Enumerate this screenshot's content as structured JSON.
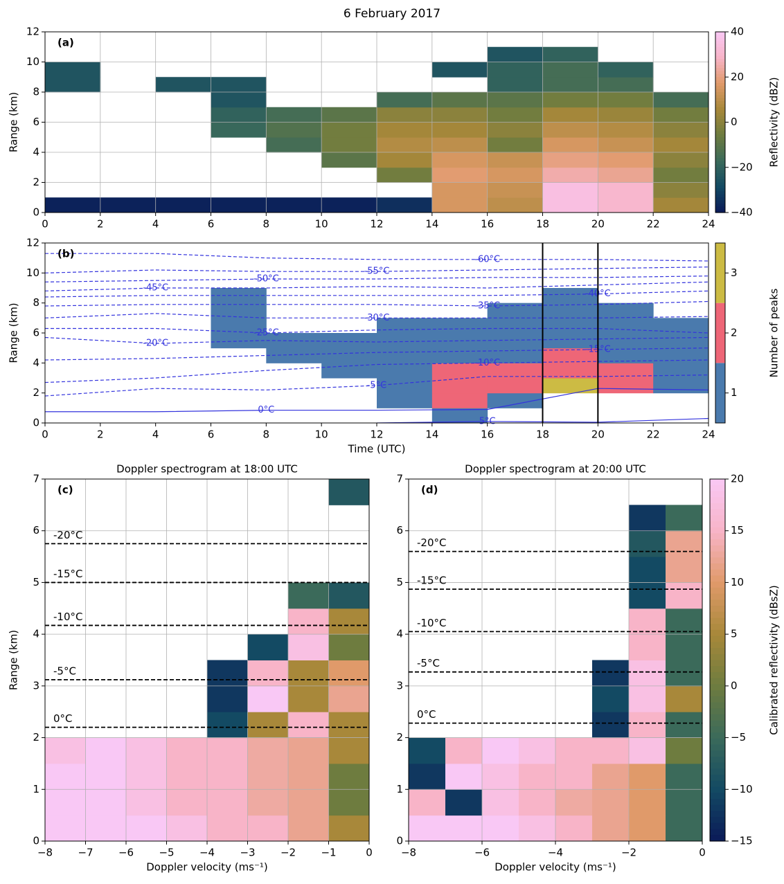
{
  "title": "6 February 2017",
  "chart_data": [
    {
      "type": "heatmap",
      "panel_label": "(a)",
      "ylabel": "Range (km)",
      "grid": true,
      "xlim": [
        0,
        24
      ],
      "xticks": [
        0,
        2,
        4,
        6,
        8,
        10,
        12,
        14,
        16,
        18,
        20,
        22,
        24
      ],
      "ylim": [
        0,
        12
      ],
      "yticks": [
        0,
        2,
        4,
        6,
        8,
        10,
        12
      ],
      "x_edges": [
        0,
        2,
        4,
        6,
        8,
        10,
        12,
        14,
        16,
        18,
        20,
        22,
        24
      ],
      "y_edges": [
        0,
        1,
        2,
        3,
        4,
        5,
        6,
        7,
        8,
        9,
        10,
        11,
        12
      ],
      "z": [
        [
          -38,
          -38,
          -38,
          -38,
          -38,
          -38,
          -35,
          15,
          10,
          35,
          30,
          5
        ],
        [
          null,
          null,
          null,
          null,
          null,
          null,
          null,
          15,
          12,
          35,
          30,
          0
        ],
        [
          null,
          null,
          null,
          null,
          null,
          null,
          -5,
          18,
          15,
          25,
          22,
          -5
        ],
        [
          null,
          null,
          null,
          null,
          null,
          -10,
          5,
          15,
          12,
          20,
          18,
          0
        ],
        [
          null,
          null,
          null,
          null,
          -15,
          -5,
          8,
          10,
          -5,
          15,
          12,
          5
        ],
        [
          null,
          null,
          null,
          -18,
          -12,
          -5,
          5,
          5,
          0,
          10,
          8,
          0
        ],
        [
          null,
          null,
          null,
          -20,
          -15,
          -10,
          0,
          0,
          -5,
          5,
          3,
          -5
        ],
        [
          null,
          null,
          null,
          -25,
          null,
          null,
          -15,
          -10,
          -10,
          -5,
          -5,
          -15
        ],
        [
          -25,
          null,
          -25,
          -25,
          null,
          null,
          null,
          null,
          -20,
          -15,
          -15,
          null
        ],
        [
          -25,
          null,
          null,
          null,
          null,
          null,
          null,
          -25,
          -20,
          -15,
          -20,
          null
        ],
        [
          null,
          null,
          null,
          null,
          null,
          null,
          null,
          null,
          -25,
          -20,
          null,
          null
        ],
        [
          null,
          null,
          null,
          null,
          null,
          null,
          null,
          null,
          null,
          null,
          null,
          null
        ]
      ],
      "colorbar": {
        "label": "Reflectivity (dBZ)",
        "lim": [
          -40,
          40
        ],
        "ticks": [
          {
            "value": -40,
            "label": "−40"
          },
          {
            "value": -20,
            "label": "−20"
          },
          0,
          20,
          40
        ],
        "colormap": [
          "#0b1a58",
          "#134a63",
          "#3b6a5a",
          "#6e7c3f",
          "#a8883a",
          "#e09a6a",
          "#f8b4c8",
          "#f9c8f5"
        ]
      }
    },
    {
      "type": "heatmap",
      "panel_label": "(b)",
      "xlabel": "Time (UTC)",
      "ylabel": "Range (km)",
      "grid": false,
      "xlim": [
        0,
        24
      ],
      "xticks": [
        0,
        2,
        4,
        6,
        8,
        10,
        12,
        14,
        16,
        18,
        20,
        22,
        24
      ],
      "ylim": [
        0,
        12
      ],
      "yticks": [
        0,
        2,
        4,
        6,
        8,
        10,
        12
      ],
      "x_edges": [
        0,
        2,
        4,
        6,
        8,
        10,
        12,
        14,
        16,
        18,
        20,
        22,
        24
      ],
      "y_edges": [
        0,
        1,
        2,
        3,
        4,
        5,
        6,
        7,
        8,
        9,
        10,
        11,
        12
      ],
      "z": [
        [
          null,
          null,
          null,
          null,
          null,
          null,
          null,
          1,
          null,
          null,
          null,
          null
        ],
        [
          null,
          null,
          null,
          null,
          null,
          null,
          1,
          2,
          1,
          null,
          null,
          null
        ],
        [
          null,
          null,
          null,
          null,
          null,
          null,
          1,
          2,
          2,
          3,
          2,
          1
        ],
        [
          null,
          null,
          null,
          null,
          null,
          1,
          1,
          2,
          2,
          2,
          2,
          1
        ],
        [
          null,
          null,
          null,
          null,
          1,
          1,
          1,
          1,
          1,
          2,
          1,
          1
        ],
        [
          null,
          null,
          null,
          1,
          1,
          1,
          1,
          1,
          1,
          1,
          1,
          1
        ],
        [
          null,
          null,
          null,
          1,
          null,
          null,
          1,
          1,
          1,
          1,
          1,
          1
        ],
        [
          null,
          null,
          null,
          1,
          null,
          null,
          null,
          null,
          1,
          1,
          1,
          null
        ],
        [
          null,
          null,
          null,
          1,
          null,
          null,
          null,
          null,
          null,
          1,
          null,
          null
        ],
        [
          null,
          null,
          null,
          null,
          null,
          null,
          null,
          null,
          null,
          null,
          null,
          null
        ],
        [
          null,
          null,
          null,
          null,
          null,
          null,
          null,
          null,
          null,
          null,
          null,
          null
        ],
        [
          null,
          null,
          null,
          null,
          null,
          null,
          null,
          null,
          null,
          null,
          null,
          null
        ]
      ],
      "vlines": [
        18,
        20
      ],
      "contour_x": [
        0,
        4,
        8,
        12,
        16,
        20,
        24
      ],
      "contours": [
        {
          "name": "5°C",
          "style": "solid",
          "color": "#3333dd",
          "y": [
            null,
            null,
            null,
            0,
            0.1,
            0.05,
            0.3
          ]
        },
        {
          "name": "0°C",
          "style": "solid",
          "color": "#3333dd",
          "y": [
            0.75,
            0.75,
            0.85,
            0.85,
            0.9,
            2.3,
            2.2
          ]
        },
        {
          "name": "-5°C",
          "style": "dashed",
          "color": "#3333dd",
          "y": [
            1.8,
            2.3,
            2.2,
            2.5,
            3.1,
            3.1,
            3.2
          ]
        },
        {
          "name": "-10°C",
          "style": "dashed",
          "color": "#3333dd",
          "y": [
            2.7,
            3.0,
            3.5,
            3.9,
            4.0,
            4.1,
            4.2
          ]
        },
        {
          "name": "-15°C",
          "style": "dashed",
          "color": "#3333dd",
          "y": [
            4.2,
            4.3,
            4.5,
            4.7,
            4.8,
            4.9,
            5.0
          ]
        },
        {
          "name": "-20°C",
          "style": "dashed",
          "color": "#3333dd",
          "y": [
            5.7,
            5.3,
            5.5,
            5.4,
            5.5,
            5.6,
            5.7
          ]
        },
        {
          "name": "-25°C",
          "style": "dashed",
          "color": "#3333dd",
          "y": [
            6.3,
            6.3,
            6.0,
            6.2,
            6.3,
            6.3,
            6.0
          ]
        },
        {
          "name": "-30°C",
          "style": "dashed",
          "color": "#3333dd",
          "y": [
            7.0,
            7.3,
            7.0,
            7.0,
            7.0,
            7.0,
            7.1
          ]
        },
        {
          "name": "-35°C",
          "style": "dashed",
          "color": "#3333dd",
          "y": [
            7.8,
            7.9,
            7.9,
            7.9,
            7.8,
            7.9,
            8.1
          ]
        },
        {
          "name": "-40°C",
          "style": "dashed",
          "color": "#3333dd",
          "y": [
            8.4,
            8.5,
            8.5,
            8.5,
            8.5,
            8.6,
            8.8
          ]
        },
        {
          "name": "-45°C",
          "style": "dashed",
          "color": "#3333dd",
          "y": [
            8.8,
            9.0,
            9.0,
            9.1,
            9.0,
            9.2,
            9.4
          ]
        },
        {
          "name": "-50°C",
          "style": "dashed",
          "color": "#3333dd",
          "y": [
            9.4,
            9.5,
            9.6,
            9.6,
            9.7,
            9.7,
            9.8
          ]
        },
        {
          "name": "-55°C",
          "style": "dashed",
          "color": "#3333dd",
          "y": [
            10.0,
            10.2,
            10.1,
            10.1,
            10.2,
            10.3,
            10.4
          ]
        },
        {
          "name": "-60°C",
          "style": "dashed",
          "color": "#3333dd",
          "y": [
            11.3,
            11.3,
            11.0,
            10.9,
            10.9,
            10.9,
            10.8
          ]
        }
      ],
      "colorbar": {
        "label": "Number of peaks",
        "lim": [
          0.5,
          3.5
        ],
        "ticks": [
          1,
          2,
          3
        ],
        "colors": [
          "#4a7aad",
          "#ee6677",
          "#ccbb44"
        ]
      }
    },
    {
      "type": "heatmap",
      "panel_label": "(c)",
      "title": "Doppler spectrogram at 18:00 UTC",
      "xlabel": "Doppler velocity (ms⁻¹)",
      "ylabel": "Range (km)",
      "grid": true,
      "xlim": [
        -8,
        0
      ],
      "xticks": [
        {
          "value": -8,
          "label": "−8"
        },
        {
          "value": -7,
          "label": "−7"
        },
        {
          "value": -6,
          "label": "−6"
        },
        {
          "value": -5,
          "label": "−5"
        },
        {
          "value": -4,
          "label": "−4"
        },
        {
          "value": -3,
          "label": "−3"
        },
        {
          "value": -2,
          "label": "−2"
        },
        {
          "value": -1,
          "label": "−1"
        },
        0
      ],
      "ylim": [
        0,
        7
      ],
      "yticks": [
        0,
        1,
        2,
        3,
        4,
        5,
        6,
        7
      ],
      "x_edges": [
        -8,
        -7,
        -6,
        -5,
        -4,
        -3,
        -2,
        -1,
        0
      ],
      "y_edges": [
        0,
        0.5,
        1,
        1.5,
        2,
        2.5,
        3,
        3.5,
        4,
        4.5,
        5,
        5.5,
        6,
        6.5,
        7
      ],
      "z": [
        [
          20,
          20,
          20,
          18,
          15,
          15,
          12,
          5
        ],
        [
          20,
          20,
          18,
          15,
          15,
          13,
          12,
          0
        ],
        [
          20,
          20,
          18,
          15,
          15,
          13,
          12,
          0
        ],
        [
          18,
          20,
          18,
          15,
          15,
          13,
          12,
          5
        ],
        [
          null,
          null,
          null,
          null,
          -10,
          5,
          15,
          5
        ],
        [
          null,
          null,
          null,
          null,
          -12,
          20,
          5,
          12
        ],
        [
          null,
          null,
          null,
          null,
          -12,
          15,
          5,
          10
        ],
        [
          null,
          null,
          null,
          null,
          null,
          -10,
          18,
          0
        ],
        [
          null,
          null,
          null,
          null,
          null,
          null,
          15,
          5
        ],
        [
          null,
          null,
          null,
          null,
          null,
          null,
          -5,
          -8
        ],
        [
          null,
          null,
          null,
          null,
          null,
          null,
          null,
          null
        ],
        [
          null,
          null,
          null,
          null,
          null,
          null,
          null,
          null
        ],
        [
          null,
          null,
          null,
          null,
          null,
          null,
          null,
          null
        ],
        [
          null,
          null,
          null,
          null,
          null,
          null,
          null,
          -8
        ]
      ],
      "hlines": [
        {
          "y": 5.75,
          "label": "-20°C"
        },
        {
          "y": 5.0,
          "label": "-15°C"
        },
        {
          "y": 4.17,
          "label": "-10°C"
        },
        {
          "y": 3.12,
          "label": "-5°C"
        },
        {
          "y": 2.2,
          "label": "0°C"
        }
      ]
    },
    {
      "type": "heatmap",
      "panel_label": "(d)",
      "title": "Doppler spectrogram at 20:00 UTC",
      "xlabel": "Doppler velocity (ms⁻¹)",
      "grid": true,
      "xlim": [
        -8,
        0
      ],
      "xticks": [
        {
          "value": -8,
          "label": "−8"
        },
        {
          "value": -6,
          "label": "−6"
        },
        {
          "value": -4,
          "label": "−4"
        },
        {
          "value": -2,
          "label": "−2"
        },
        0
      ],
      "ylim": [
        0,
        7
      ],
      "yticks": [
        0,
        1,
        2,
        3,
        4,
        5,
        6,
        7
      ],
      "x_edges": [
        -8,
        -7,
        -6,
        -5,
        -4,
        -3,
        -2,
        -1,
        0
      ],
      "y_edges": [
        0,
        0.5,
        1,
        1.5,
        2,
        2.5,
        3,
        3.5,
        4,
        4.5,
        5,
        5.5,
        6,
        6.5,
        7
      ],
      "z": [
        [
          20,
          20,
          20,
          18,
          15,
          12,
          10,
          -5
        ],
        [
          15,
          -12,
          18,
          15,
          13,
          12,
          10,
          -5
        ],
        [
          -12,
          20,
          18,
          15,
          15,
          12,
          10,
          -5
        ],
        [
          -10,
          15,
          20,
          18,
          15,
          15,
          18,
          0
        ],
        [
          null,
          null,
          null,
          null,
          null,
          -12,
          15,
          -5
        ],
        [
          null,
          null,
          null,
          null,
          null,
          -10,
          18,
          5
        ],
        [
          null,
          null,
          null,
          null,
          null,
          -12,
          18,
          -5
        ],
        [
          null,
          null,
          null,
          null,
          null,
          null,
          15,
          -5
        ],
        [
          null,
          null,
          null,
          null,
          null,
          null,
          15,
          -5
        ],
        [
          null,
          null,
          null,
          null,
          null,
          null,
          -10,
          15
        ],
        [
          null,
          null,
          null,
          null,
          null,
          null,
          -10,
          12
        ],
        [
          null,
          null,
          null,
          null,
          null,
          null,
          -8,
          12
        ],
        [
          null,
          null,
          null,
          null,
          null,
          null,
          -12,
          -5
        ],
        [
          null,
          null,
          null,
          null,
          null,
          null,
          null,
          null
        ]
      ],
      "hlines": [
        {
          "y": 5.6,
          "label": "-20°C"
        },
        {
          "y": 4.87,
          "label": "-15°C"
        },
        {
          "y": 4.05,
          "label": "-10°C"
        },
        {
          "y": 3.27,
          "label": "-5°C"
        },
        {
          "y": 2.28,
          "label": "0°C"
        }
      ],
      "colorbar": {
        "label": "Calibrated reflectivity (dBsZ)",
        "lim": [
          -15,
          20
        ],
        "ticks": [
          {
            "value": -15,
            "label": "−15"
          },
          {
            "value": -10,
            "label": "−10"
          },
          {
            "value": -5,
            "label": "−5"
          },
          0,
          5,
          10,
          15,
          20
        ],
        "colormap": [
          "#0b1a58",
          "#134a63",
          "#3b6a5a",
          "#6e7c3f",
          "#a8883a",
          "#e09a6a",
          "#f8b4c8",
          "#f9c8f5"
        ]
      }
    }
  ]
}
